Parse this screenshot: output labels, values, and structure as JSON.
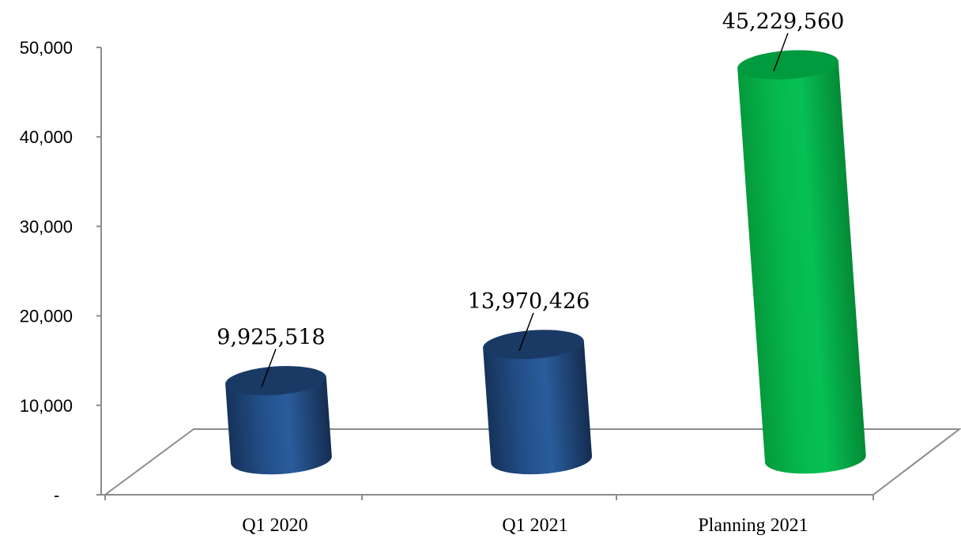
{
  "chart_data": {
    "type": "bar",
    "style": "3d-cylinder",
    "categories": [
      "Q1 2020",
      "Q1 2021",
      "Planning 2021"
    ],
    "values": [
      9925518,
      13970426,
      45229560
    ],
    "data_labels": [
      "9,925,518",
      "13,970,426",
      "45,229,560"
    ],
    "bar_colors": [
      "#1f497d",
      "#1f497d",
      "#00b050"
    ],
    "y_ticks": [
      "-",
      "10,000",
      "20,000",
      "30,000",
      "40,000",
      "50,000"
    ],
    "ylim": [
      0,
      50000
    ],
    "y_unit_divisor": 1000,
    "title": "",
    "xlabel": "",
    "ylabel": "",
    "grid": false,
    "legend": "none"
  }
}
